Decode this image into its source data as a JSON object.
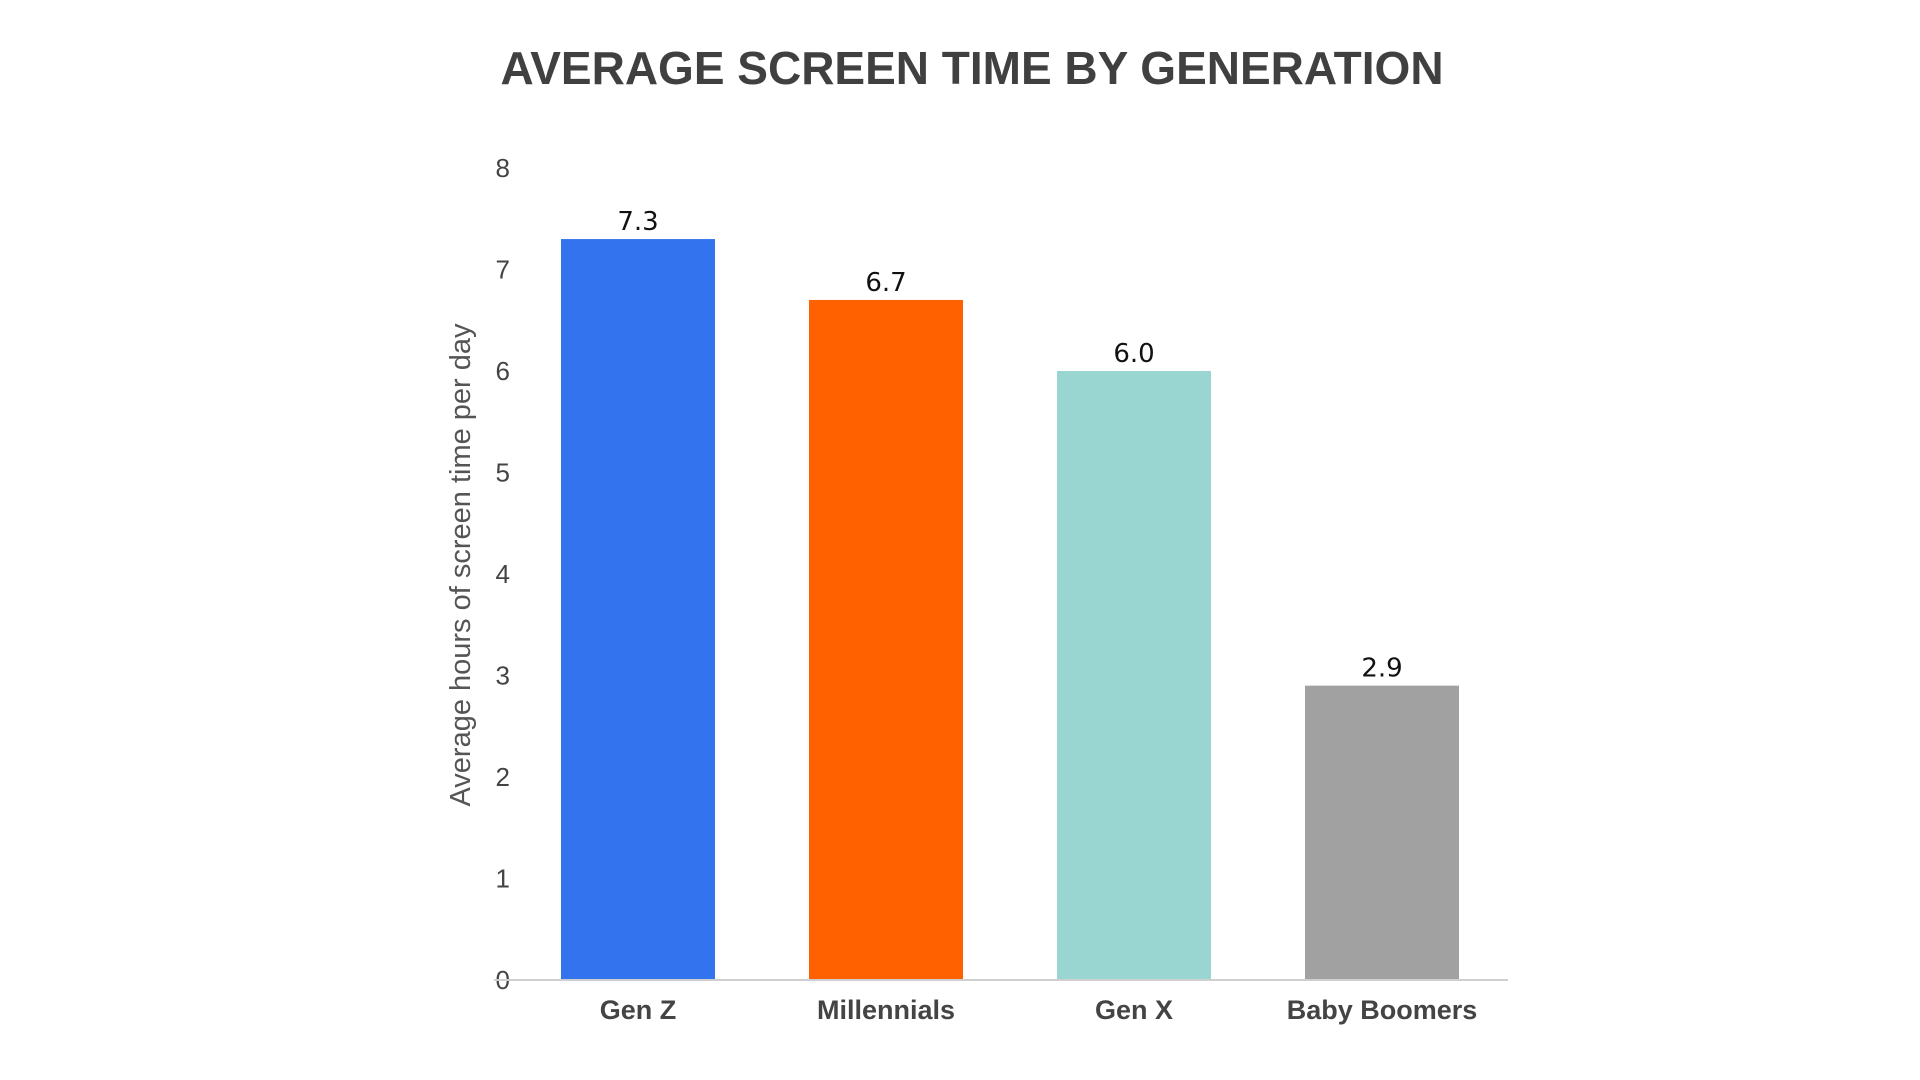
{
  "chart_data": {
    "type": "bar",
    "title": "AVERAGE SCREEN TIME BY GENERATION",
    "xlabel": "",
    "ylabel": "Average hours of screen time per day",
    "categories": [
      "Gen Z",
      "Millennials",
      "Gen X",
      "Baby Boomers"
    ],
    "values": [
      7.3,
      6.7,
      6.0,
      2.9
    ],
    "value_labels": [
      "7.3",
      "6.7",
      "6.0",
      "2.9"
    ],
    "colors": [
      "#3373ED",
      "#FF6100",
      "#99D5D1",
      "#A1A1A1"
    ],
    "ylim": [
      0,
      8
    ],
    "yticks": [
      "0",
      "1",
      "2",
      "3",
      "4",
      "5",
      "6",
      "7",
      "8"
    ],
    "grid": false,
    "legend": "none"
  }
}
